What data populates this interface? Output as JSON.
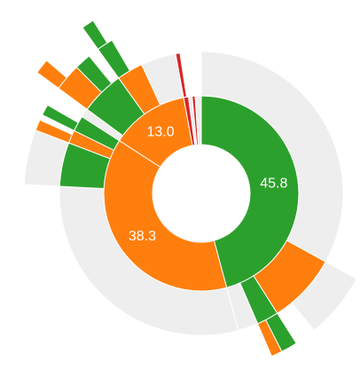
{
  "chart_data": {
    "type": "sunburst",
    "nodes": [
      {
        "value": 45.8,
        "value_label": "45.8",
        "color": "#2ca02c",
        "children": [
          {
            "value": 33,
            "color": "#eeeeee"
          },
          {
            "value": 8,
            "color": "#ff7f0e",
            "children": [
              {
                "value": 6,
                "color": "#eeeeee"
              }
            ]
          },
          {
            "value": 2.5,
            "color": "#2ca02c",
            "children": [
              {
                "value": 1.5,
                "color": "#2ca02c"
              },
              {
                "value": 1,
                "color": "#ff7f0e"
              }
            ]
          },
          {
            "value": 2.3,
            "color": "#eeeeee"
          }
        ]
      },
      {
        "value": 38.3,
        "value_label": "38.3",
        "color": "#ff7f0e",
        "children": [
          {
            "value": 30,
            "color": "#eeeeee"
          },
          {
            "value": 5,
            "color": "#2ca02c",
            "children": [
              {
                "value": 5,
                "color": "#eeeeee"
              }
            ]
          },
          {
            "value": 1.5,
            "color": "#ff7f0e",
            "children": [
              {
                "value": 1,
                "color": "#ff7f0e"
              }
            ]
          },
          {
            "value": 1.8,
            "color": "#2ca02c",
            "children": [
              {
                "value": 1,
                "color": "#2ca02c"
              }
            ]
          }
        ]
      },
      {
        "value": 13,
        "value_label": "13.0",
        "color": "#ff7f0e",
        "children": [
          {
            "value": 1,
            "color": "#eeeeee"
          },
          {
            "value": 5,
            "color": "#2ca02c",
            "children": [
              {
                "value": 2.5,
                "color": "#ff7f0e",
                "children": [
                  {
                    "value": 1.2,
                    "color": "#ff7f0e"
                  }
                ]
              },
              {
                "value": 1.5,
                "color": "#2ca02c"
              }
            ]
          },
          {
            "value": 3,
            "color": "#ff7f0e",
            "children": [
              {
                "value": 1.5,
                "color": "#2ca02c",
                "children": [
                  {
                    "value": 1,
                    "color": "#2ca02c"
                  }
                ]
              }
            ]
          },
          {
            "value": 4,
            "color": "#eeeeee"
          }
        ]
      },
      {
        "value": 0.8,
        "color": "#d62728",
        "children": [
          {
            "value": 0.5,
            "color": "#d62728"
          }
        ]
      },
      {
        "value": 0.6,
        "color": "#eeeeee"
      },
      {
        "value": 0.5,
        "color": "#d62728"
      },
      {
        "value": 1.0,
        "color": "#eeeeee"
      }
    ]
  }
}
